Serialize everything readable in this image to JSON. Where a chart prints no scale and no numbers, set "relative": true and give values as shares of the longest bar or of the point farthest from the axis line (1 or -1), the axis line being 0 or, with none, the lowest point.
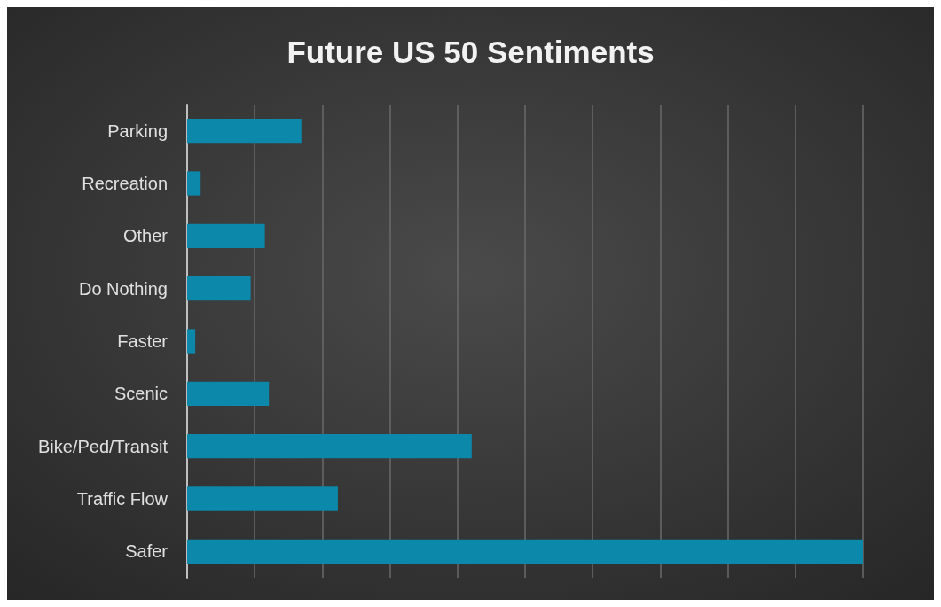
{
  "chart_data": {
    "type": "bar",
    "orientation": "horizontal",
    "relative": true,
    "title": "Future US 50 Sentiments",
    "categories": [
      "Parking",
      "Recreation",
      "Other",
      "Do Nothing",
      "Faster",
      "Scenic",
      "Bike/Ped/Transit",
      "Traffic Flow",
      "Safer"
    ],
    "series": [
      {
        "color": "#0b88aa",
        "values": [
          0.169,
          0.02,
          0.115,
          0.094,
          0.012,
          0.121,
          0.421,
          0.223,
          1
        ]
      }
    ],
    "grid": "x"
  }
}
